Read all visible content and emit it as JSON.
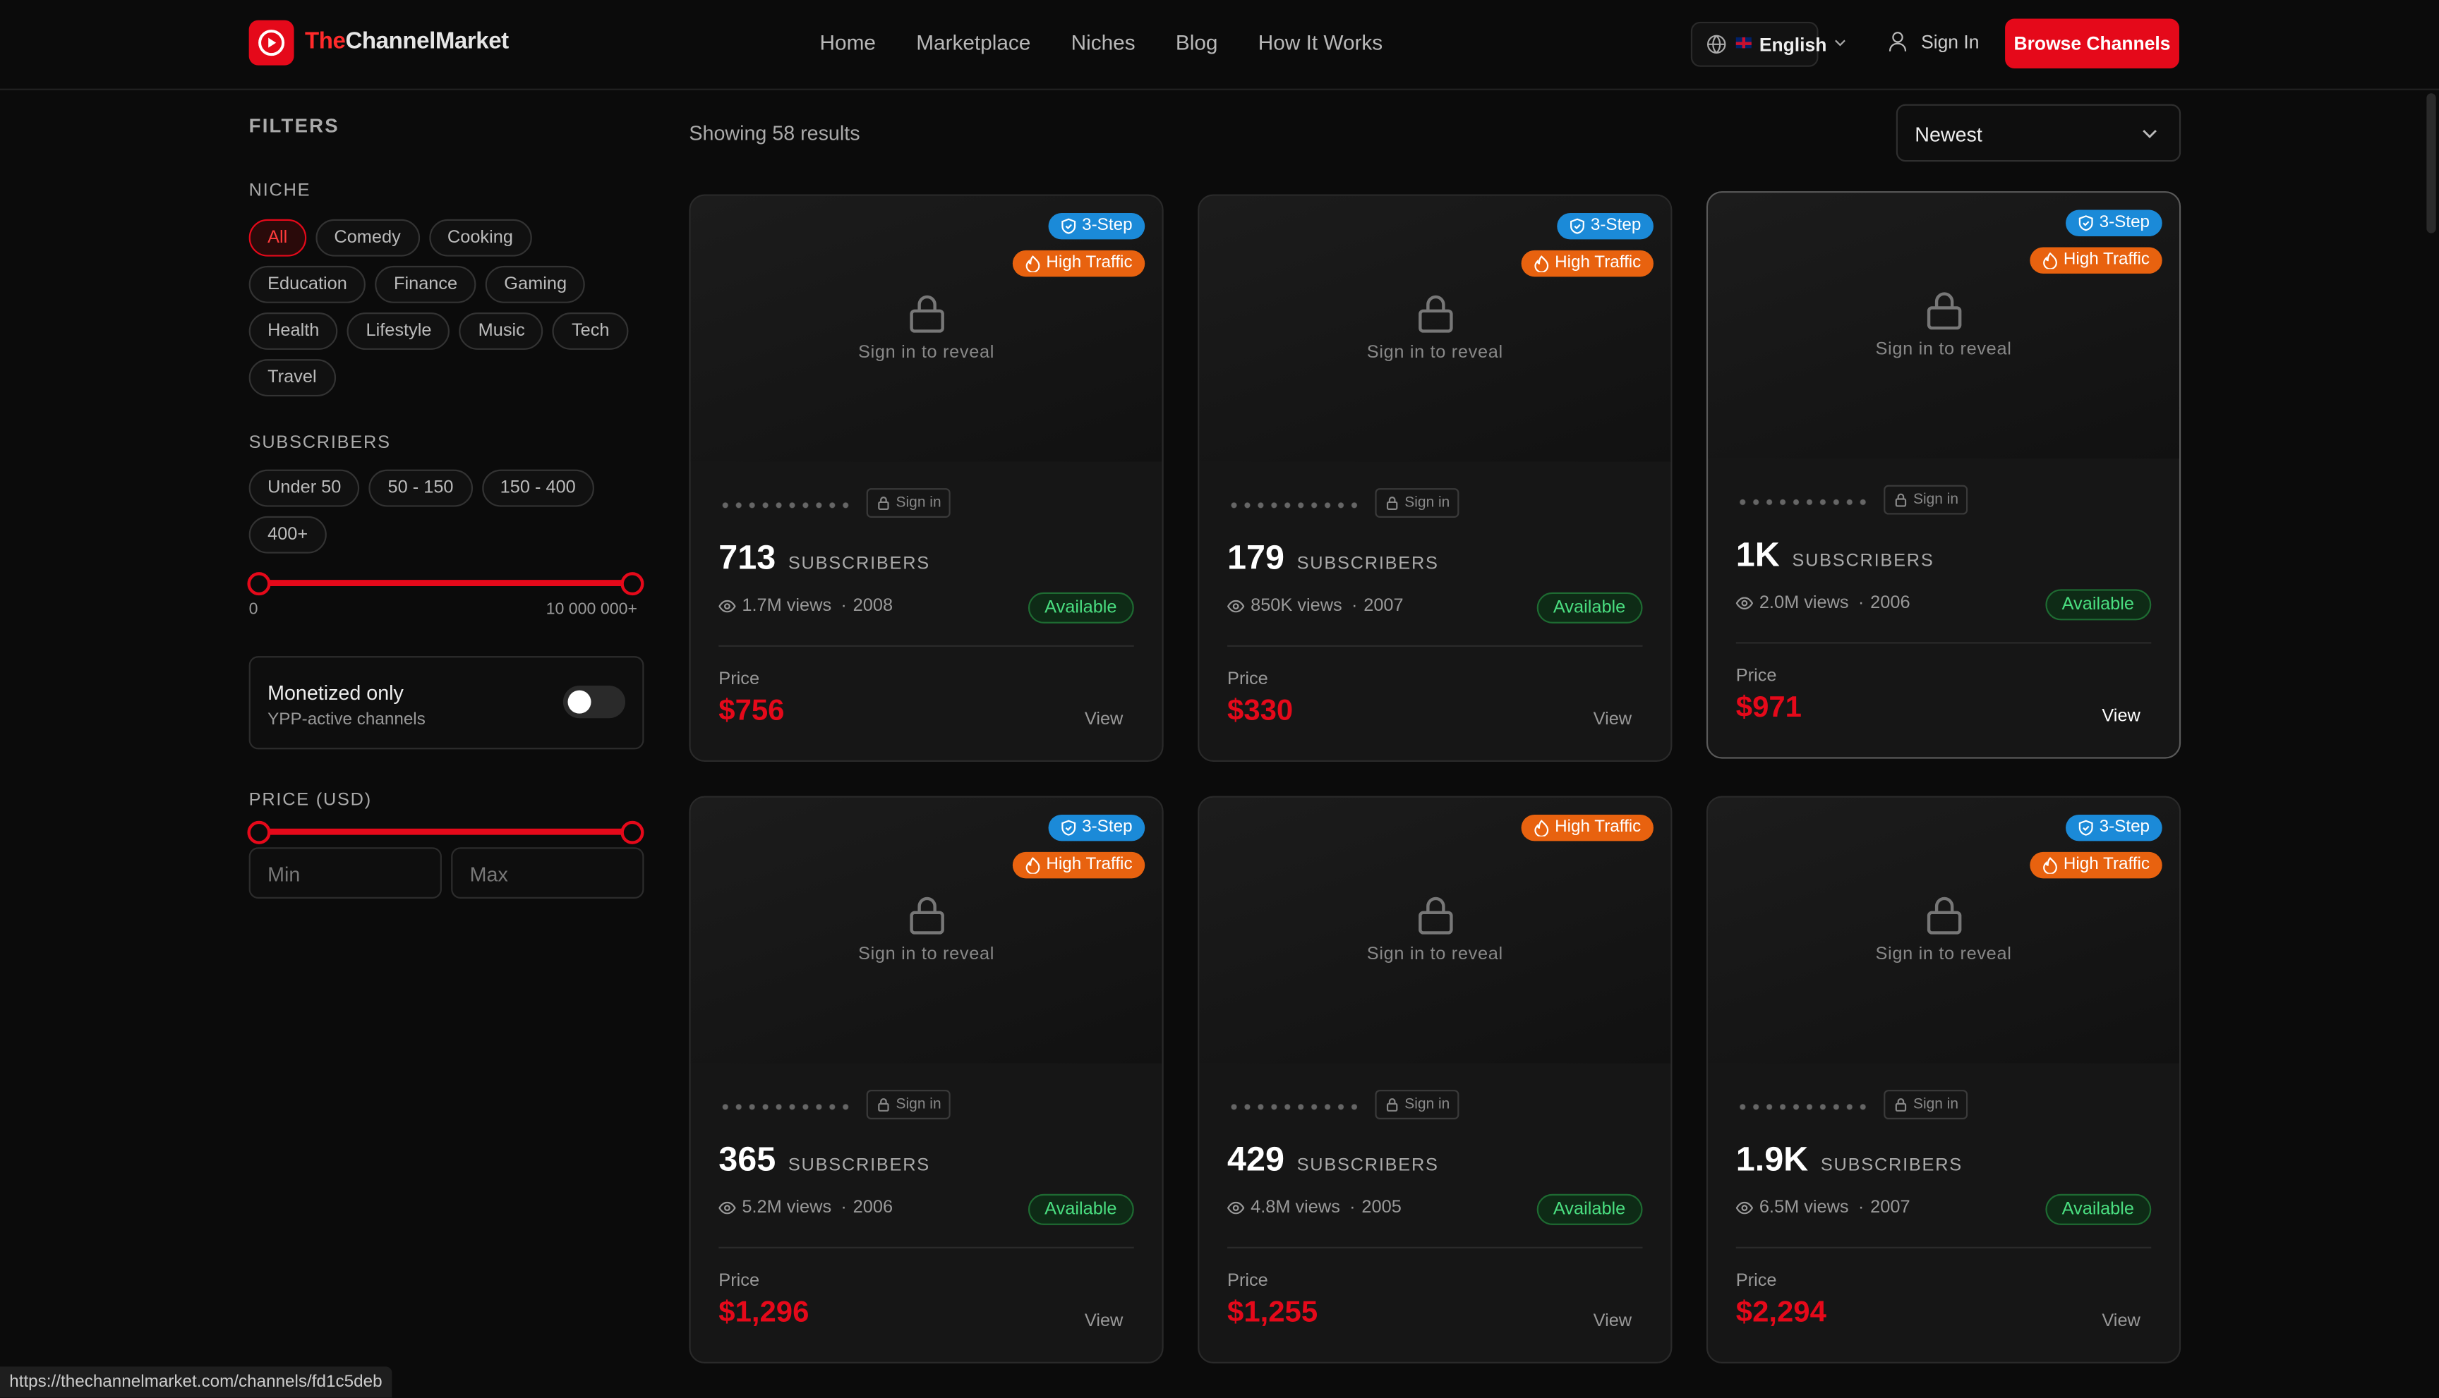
{
  "header": {
    "logo_prefix": "The",
    "logo_main": "ChannelMarket",
    "nav": [
      "Home",
      "Marketplace",
      "Niches",
      "Blog",
      "How It Works"
    ],
    "language": "English",
    "sign_in": "Sign In",
    "cta": "Browse Channels"
  },
  "filters": {
    "title": "FILTERS",
    "niche": {
      "label": "NICHE",
      "options": [
        "All",
        "Comedy",
        "Cooking",
        "Education",
        "Finance",
        "Gaming",
        "Health",
        "Lifestyle",
        "Music",
        "Tech",
        "Travel"
      ]
    },
    "subscribers": {
      "label": "SUBSCRIBERS",
      "options": [
        "Under 50",
        "50 - 150",
        "150 - 400",
        "400+"
      ],
      "range_min": "0",
      "range_max": "10 000 000+"
    },
    "monetized": {
      "title": "Monetized only",
      "subtitle": "YPP-active channels"
    },
    "price": {
      "label": "PRICE (USD)",
      "min_placeholder": "Min",
      "max_placeholder": "Max"
    }
  },
  "results": {
    "count": "Showing 58 results",
    "sort": "Newest"
  },
  "cards": [
    {
      "badges": [
        "3-Step",
        "High Traffic"
      ],
      "locked": "Sign in to reveal",
      "sign_in": "Sign in",
      "subscribers": "713",
      "subscribers_label": "SUBSCRIBERS",
      "views": "1.7M views",
      "year": "2008",
      "status": "Available",
      "price_label": "Price",
      "price": "$756",
      "view": "View"
    },
    {
      "badges": [
        "3-Step",
        "High Traffic"
      ],
      "locked": "Sign in to reveal",
      "sign_in": "Sign in",
      "subscribers": "179",
      "subscribers_label": "SUBSCRIBERS",
      "views": "850K views",
      "year": "2007",
      "status": "Available",
      "price_label": "Price",
      "price": "$330",
      "view": "View"
    },
    {
      "badges": [
        "3-Step",
        "High Traffic"
      ],
      "locked": "Sign in to reveal",
      "sign_in": "Sign in",
      "subscribers": "1K",
      "subscribers_label": "SUBSCRIBERS",
      "views": "2.0M views",
      "year": "2006",
      "status": "Available",
      "price_label": "Price",
      "price": "$971",
      "view": "View"
    },
    {
      "badges": [
        "3-Step",
        "High Traffic"
      ],
      "locked": "Sign in to reveal",
      "sign_in": "Sign in",
      "subscribers": "365",
      "subscribers_label": "SUBSCRIBERS",
      "views": "5.2M views",
      "year": "2006",
      "status": "Available",
      "price_label": "Price",
      "price": "$1,296",
      "view": "View"
    },
    {
      "badges": [
        "High Traffic"
      ],
      "locked": "Sign in to reveal",
      "sign_in": "Sign in",
      "subscribers": "429",
      "subscribers_label": "SUBSCRIBERS",
      "views": "4.8M views",
      "year": "2005",
      "status": "Available",
      "price_label": "Price",
      "price": "$1,255",
      "view": "View"
    },
    {
      "badges": [
        "3-Step",
        "High Traffic"
      ],
      "locked": "Sign in to reveal",
      "sign_in": "Sign in",
      "subscribers": "1.9K",
      "subscribers_label": "SUBSCRIBERS",
      "views": "6.5M views",
      "year": "2007",
      "status": "Available",
      "price_label": "Price",
      "price": "$2,294",
      "view": "View"
    }
  ],
  "status_url": "https://thechannelmarket.com/channels/fd1c5deb"
}
